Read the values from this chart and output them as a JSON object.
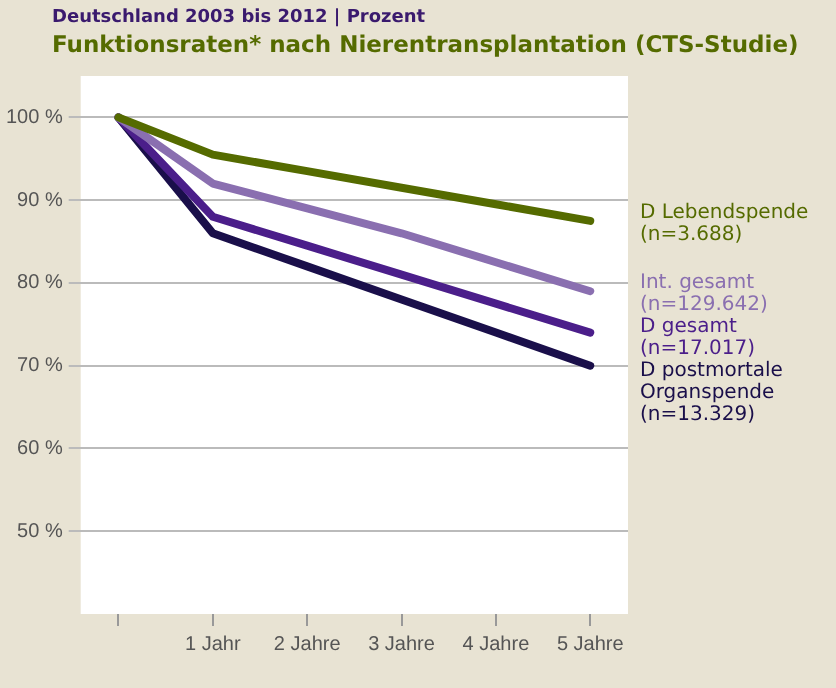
{
  "chart_data": {
    "type": "line",
    "title": "Funktionsraten* nach Nierentransplantation (CTS-Studie)",
    "subtitle": "Deutschland 2003 bis 2012 | Prozent",
    "x": [
      0,
      1,
      2,
      3,
      4,
      5
    ],
    "xlim": [
      -0.4,
      5.4
    ],
    "xticks": [
      {
        "value": 0,
        "label": null
      },
      {
        "value": 1,
        "label": "1 Jahr"
      },
      {
        "value": 2,
        "label": "2 Jahre"
      },
      {
        "value": 3,
        "label": "3 Jahre"
      },
      {
        "value": 4,
        "label": "4 Jahre"
      },
      {
        "value": 5,
        "label": "5 Jahre"
      }
    ],
    "ylim": [
      40,
      105
    ],
    "yticks": [
      {
        "value": 50,
        "label": "50 %"
      },
      {
        "value": 60,
        "label": "60 %"
      },
      {
        "value": 70,
        "label": "70 %"
      },
      {
        "value": 80,
        "label": "80 %"
      },
      {
        "value": 90,
        "label": "90 %"
      },
      {
        "value": 100,
        "label": "100 %"
      }
    ],
    "grid": "y",
    "legend": "right",
    "marker": "none",
    "series": [
      {
        "name": "D Lebendspende (n=3.688)",
        "color": "#556b00",
        "values": [
          100,
          95.5,
          93.5,
          91.5,
          89.5,
          87.5
        ]
      },
      {
        "name": "Int. gesamt (n=129.642)",
        "color": "#8a6fb0",
        "values": [
          100,
          92,
          89,
          86,
          82.5,
          79
        ]
      },
      {
        "name": "D gesamt (n=17.017)",
        "color": "#4b1e8a",
        "values": [
          100,
          88,
          84.5,
          81,
          77.5,
          74
        ]
      },
      {
        "name": "D postmortale Organspende (n=13.329)",
        "color": "#1a0f4a",
        "values": [
          100,
          86,
          82,
          78,
          74,
          70
        ]
      }
    ]
  }
}
